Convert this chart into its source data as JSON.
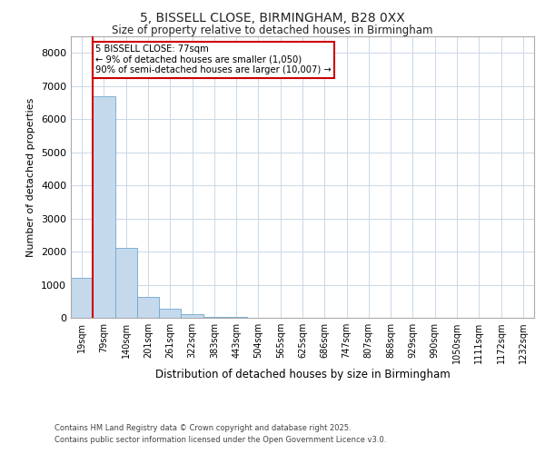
{
  "title_line1": "5, BISSELL CLOSE, BIRMINGHAM, B28 0XX",
  "title_line2": "Size of property relative to detached houses in Birmingham",
  "xlabel": "Distribution of detached houses by size in Birmingham",
  "ylabel": "Number of detached properties",
  "annotation_title": "5 BISSELL CLOSE: 77sqm",
  "annotation_line1": "← 9% of detached houses are smaller (1,050)",
  "annotation_line2": "90% of semi-detached houses are larger (10,007) →",
  "bin_labels": [
    "19sqm",
    "79sqm",
    "140sqm",
    "201sqm",
    "261sqm",
    "322sqm",
    "383sqm",
    "443sqm",
    "504sqm",
    "565sqm",
    "625sqm",
    "686sqm",
    "747sqm",
    "807sqm",
    "868sqm",
    "929sqm",
    "990sqm",
    "1050sqm",
    "1111sqm",
    "1172sqm",
    "1232sqm"
  ],
  "bin_values": [
    1200,
    6700,
    2100,
    630,
    270,
    110,
    40,
    15,
    8,
    4,
    2,
    1,
    0,
    0,
    0,
    0,
    0,
    0,
    0,
    0,
    0
  ],
  "bar_color": "#c5d9ed",
  "bar_edge_color": "#6fa8cc",
  "red_line_color": "#cc0000",
  "annotation_box_color": "#cc0000",
  "background_color": "#ffffff",
  "grid_color": "#c8d8e8",
  "ylim": [
    0,
    8500
  ],
  "yticks": [
    0,
    1000,
    2000,
    3000,
    4000,
    5000,
    6000,
    7000,
    8000
  ],
  "footer_line1": "Contains HM Land Registry data © Crown copyright and database right 2025.",
  "footer_line2": "Contains public sector information licensed under the Open Government Licence v3.0."
}
